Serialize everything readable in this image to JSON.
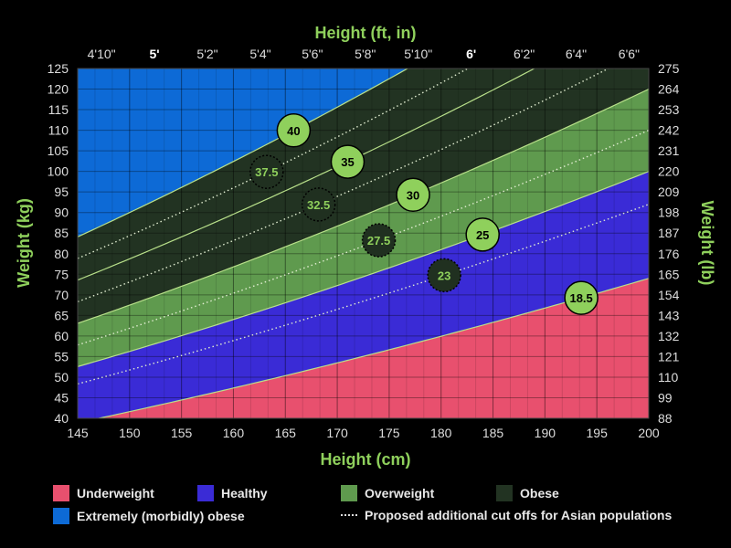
{
  "colors": {
    "background": "#000000",
    "underweight": "#e8506e",
    "healthy": "#3a2bd6",
    "overweight": "#5f9a4e",
    "obese": "#223322",
    "extremely_obese": "#0d6ad6",
    "title_green": "#8fd05c",
    "band_line": "#b8e08a",
    "circle_fill": "#8fd05c",
    "circle_dark": "#203020"
  },
  "chart_data": {
    "type": "area",
    "title_top": "Height (ft, in)",
    "xlabel": "Height (cm)",
    "ylabel_left": "Weight (kg)",
    "ylabel_right": "Weight (lb)",
    "xlim": [
      145,
      200
    ],
    "ylim": [
      40,
      125
    ],
    "grid": true,
    "x_ticks": [
      "145",
      "150",
      "155",
      "160",
      "165",
      "170",
      "175",
      "180",
      "185",
      "190",
      "195",
      "200"
    ],
    "y_ticks_left": [
      "40",
      "45",
      "50",
      "55",
      "60",
      "65",
      "70",
      "75",
      "80",
      "85",
      "90",
      "95",
      "100",
      "105",
      "110",
      "115",
      "120",
      "125"
    ],
    "y_ticks_right": [
      "88",
      "99",
      "110",
      "121",
      "132",
      "143",
      "154",
      "165",
      "176",
      "187",
      "198",
      "209",
      "220",
      "231",
      "242",
      "253",
      "264",
      "275"
    ],
    "top_ticks": [
      {
        "label": "4'10\"",
        "cm": 147.3,
        "bold": false
      },
      {
        "label": "5'",
        "cm": 152.4,
        "bold": true
      },
      {
        "label": "5'2\"",
        "cm": 157.5,
        "bold": false
      },
      {
        "label": "5'4\"",
        "cm": 162.6,
        "bold": false
      },
      {
        "label": "5'6\"",
        "cm": 167.6,
        "bold": false
      },
      {
        "label": "5'8\"",
        "cm": 172.7,
        "bold": false
      },
      {
        "label": "5'10\"",
        "cm": 177.8,
        "bold": false
      },
      {
        "label": "6'",
        "cm": 182.9,
        "bold": true
      },
      {
        "label": "6'2\"",
        "cm": 188.0,
        "bold": false
      },
      {
        "label": "6'4\"",
        "cm": 193.0,
        "bold": false
      },
      {
        "label": "6'6\"",
        "cm": 198.1,
        "bold": false
      }
    ],
    "bmi_boundaries": [
      18.5,
      25,
      30,
      40
    ],
    "asian_cutoffs": [
      23,
      27.5,
      32.5,
      37.5
    ],
    "extra_solid_lines": [
      35
    ],
    "bmi_labels": [
      {
        "label": "40",
        "bmi": 40,
        "height_cm": 165.8,
        "style": "solid"
      },
      {
        "label": "35",
        "bmi": 35,
        "height_cm": 171.0,
        "style": "solid"
      },
      {
        "label": "30",
        "bmi": 30,
        "height_cm": 177.3,
        "style": "solid"
      },
      {
        "label": "25",
        "bmi": 25,
        "height_cm": 184.0,
        "style": "solid"
      },
      {
        "label": "18.5",
        "bmi": 18.5,
        "height_cm": 193.5,
        "style": "solid"
      },
      {
        "label": "37.5",
        "bmi": 37.5,
        "height_cm": 163.2,
        "style": "dotted"
      },
      {
        "label": "32.5",
        "bmi": 32.5,
        "height_cm": 168.2,
        "style": "dotted"
      },
      {
        "label": "27.5",
        "bmi": 27.5,
        "height_cm": 174.0,
        "style": "dotted"
      },
      {
        "label": "23",
        "bmi": 23,
        "height_cm": 180.3,
        "style": "dotted"
      }
    ]
  },
  "legend": {
    "underweight": "Underweight",
    "healthy": "Healthy",
    "overweight": "Overweight",
    "obese": "Obese",
    "extremely_obese": "Extremely (morbidly) obese",
    "asian_cutoffs": "Proposed additional cut offs for Asian populations"
  }
}
